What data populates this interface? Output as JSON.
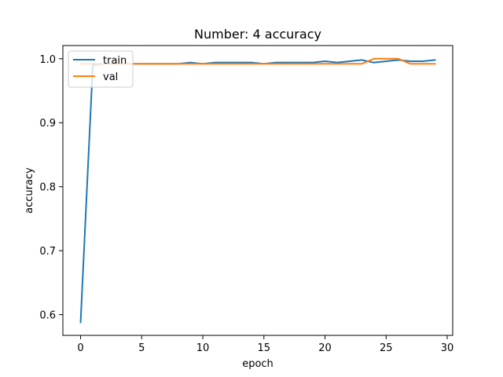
{
  "chart_data": {
    "type": "line",
    "title": "Number: 4 accuracy",
    "xlabel": "epoch",
    "ylabel": "accuracy",
    "xlim": [
      -1.45,
      30.45
    ],
    "ylim": [
      0.5676,
      1.0206
    ],
    "xticks": [
      0,
      5,
      10,
      15,
      20,
      25,
      30
    ],
    "yticks": [
      0.6,
      0.7,
      0.8,
      0.9,
      1.0
    ],
    "xtick_labels": [
      "0",
      "5",
      "10",
      "15",
      "20",
      "25",
      "30"
    ],
    "ytick_labels": [
      "0.6",
      "0.7",
      "0.8",
      "0.9",
      "1.0"
    ],
    "grid": false,
    "legend_position": "top-left",
    "x": [
      0,
      1,
      2,
      3,
      4,
      5,
      6,
      7,
      8,
      9,
      10,
      11,
      12,
      13,
      14,
      15,
      16,
      17,
      18,
      19,
      20,
      21,
      22,
      23,
      24,
      25,
      26,
      27,
      28,
      29
    ],
    "series": [
      {
        "name": "train",
        "color": "#1f77b4",
        "values": [
          0.588,
          0.99,
          0.992,
          0.992,
          0.992,
          0.992,
          0.992,
          0.992,
          0.992,
          0.994,
          0.992,
          0.994,
          0.994,
          0.994,
          0.994,
          0.992,
          0.994,
          0.994,
          0.994,
          0.994,
          0.996,
          0.994,
          0.996,
          0.998,
          0.994,
          0.996,
          0.998,
          0.996,
          0.996,
          0.998
        ]
      },
      {
        "name": "val",
        "color": "#ff7f0e",
        "values": [
          0.992,
          0.992,
          0.992,
          0.992,
          0.992,
          0.992,
          0.992,
          0.992,
          0.992,
          0.992,
          0.992,
          0.992,
          0.992,
          0.992,
          0.992,
          0.992,
          0.992,
          0.992,
          0.992,
          0.992,
          0.992,
          0.992,
          0.992,
          0.992,
          1.0,
          1.0,
          1.0,
          0.992,
          0.992,
          0.992
        ]
      }
    ]
  }
}
